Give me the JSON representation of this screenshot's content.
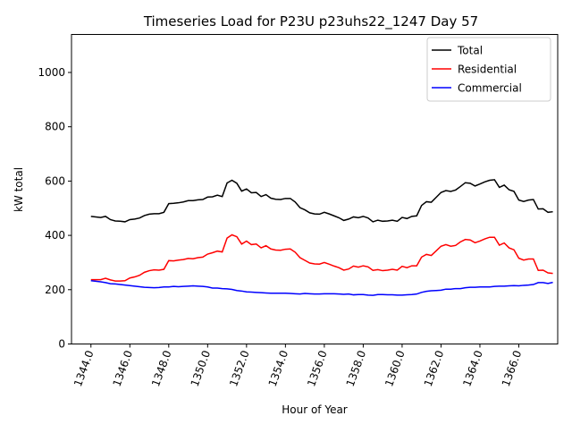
{
  "chart_data": {
    "type": "line",
    "title": "Timeseries Load for P23U p23uhs22_1247  Day 57",
    "xlabel": "Hour of Year",
    "ylabel": "kW total",
    "xlim": [
      1343.0,
      1368.0
    ],
    "ylim": [
      0,
      1140
    ],
    "grid": false,
    "legend_position": "top-right",
    "x_ticks": [
      1344,
      1346,
      1348,
      1350,
      1352,
      1354,
      1356,
      1358,
      1360,
      1362,
      1364,
      1366
    ],
    "x_tick_labels": [
      "1344.0",
      "1346.0",
      "1348.0",
      "1350.0",
      "1352.0",
      "1354.0",
      "1356.0",
      "1358.0",
      "1360.0",
      "1362.0",
      "1364.0",
      "1366.0"
    ],
    "y_ticks": [
      0,
      200,
      400,
      600,
      800,
      1000
    ],
    "y_tick_labels": [
      "0",
      "200",
      "400",
      "600",
      "800",
      "1000"
    ],
    "x_start": 1344.0,
    "x_step": 0.25,
    "series": [
      {
        "name": "Total",
        "color": "#000000",
        "values": [
          470,
          468,
          466,
          470,
          458,
          453,
          452,
          450,
          458,
          460,
          464,
          473,
          478,
          480,
          480,
          485,
          517,
          518,
          520,
          523,
          528,
          528,
          531,
          532,
          541,
          542,
          548,
          543,
          593,
          603,
          592,
          563,
          571,
          557,
          558,
          543,
          550,
          537,
          533,
          532,
          536,
          536,
          523,
          502,
          494,
          483,
          479,
          478,
          485,
          479,
          472,
          465,
          455,
          460,
          468,
          465,
          470,
          464,
          450,
          456,
          452,
          453,
          456,
          452,
          466,
          462,
          470,
          472,
          510,
          524,
          522,
          540,
          558,
          565,
          562,
          567,
          580,
          594,
          592,
          582,
          589,
          597,
          603,
          605,
          577,
          585,
          568,
          562,
          530,
          525,
          530,
          532,
          497,
          498,
          485,
          487
        ]
      },
      {
        "name": "Residential",
        "color": "#ff0000",
        "values": [
          237,
          237,
          237,
          242,
          236,
          232,
          232,
          233,
          243,
          247,
          253,
          264,
          270,
          273,
          272,
          275,
          307,
          306,
          309,
          311,
          315,
          314,
          318,
          320,
          331,
          336,
          342,
          339,
          390,
          402,
          395,
          368,
          379,
          366,
          368,
          354,
          362,
          350,
          346,
          345,
          349,
          350,
          338,
          318,
          308,
          298,
          295,
          294,
          300,
          294,
          287,
          281,
          272,
          276,
          287,
          283,
          288,
          284,
          271,
          274,
          270,
          272,
          275,
          272,
          286,
          281,
          288,
          288,
          320,
          330,
          326,
          343,
          360,
          366,
          360,
          363,
          376,
          385,
          383,
          373,
          379,
          387,
          393,
          393,
          364,
          372,
          354,
          347,
          316,
          309,
          313,
          313,
          271,
          272,
          262,
          260
        ]
      },
      {
        "name": "Commercial",
        "color": "#0000ff",
        "values": [
          233,
          231,
          229,
          226,
          222,
          221,
          219,
          217,
          215,
          213,
          211,
          209,
          208,
          207,
          208,
          210,
          210,
          212,
          211,
          212,
          213,
          214,
          213,
          212,
          210,
          206,
          206,
          204,
          203,
          201,
          197,
          195,
          192,
          191,
          190,
          189,
          188,
          187,
          187,
          187,
          187,
          186,
          185,
          184,
          186,
          185,
          184,
          184,
          185,
          185,
          185,
          184,
          183,
          184,
          181,
          182,
          182,
          180,
          179,
          182,
          182,
          181,
          181,
          180,
          180,
          181,
          182,
          184,
          190,
          194,
          196,
          197,
          198,
          202,
          202,
          204,
          204,
          207,
          209,
          209,
          210,
          210,
          210,
          212,
          213,
          213,
          214,
          215,
          214,
          216,
          217,
          219,
          226,
          226,
          223,
          227
        ]
      }
    ]
  }
}
